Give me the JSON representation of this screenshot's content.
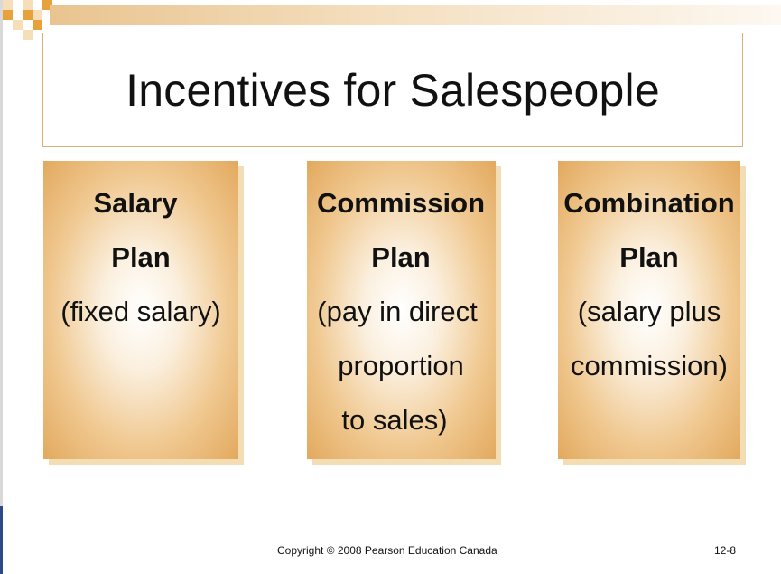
{
  "slide": {
    "title": "Incentives for Salespeople",
    "plans": [
      {
        "name": "Salary",
        "name2": "Plan",
        "desc": [
          "(fixed salary)"
        ]
      },
      {
        "name": "Commission",
        "name2": "Plan",
        "desc": [
          "(pay in direct",
          "proportion",
          "to sales)"
        ]
      },
      {
        "name": "Combination",
        "name2": "Plan",
        "desc": [
          "(salary plus",
          "commission)"
        ]
      }
    ]
  },
  "footer": {
    "copyright": "Copyright © 2008 Pearson Education Canada",
    "page": "12-8"
  },
  "colors": {
    "accent": "#e2a95e",
    "title_border": "#d9b07a",
    "deco_orange": "#e8a23c"
  }
}
